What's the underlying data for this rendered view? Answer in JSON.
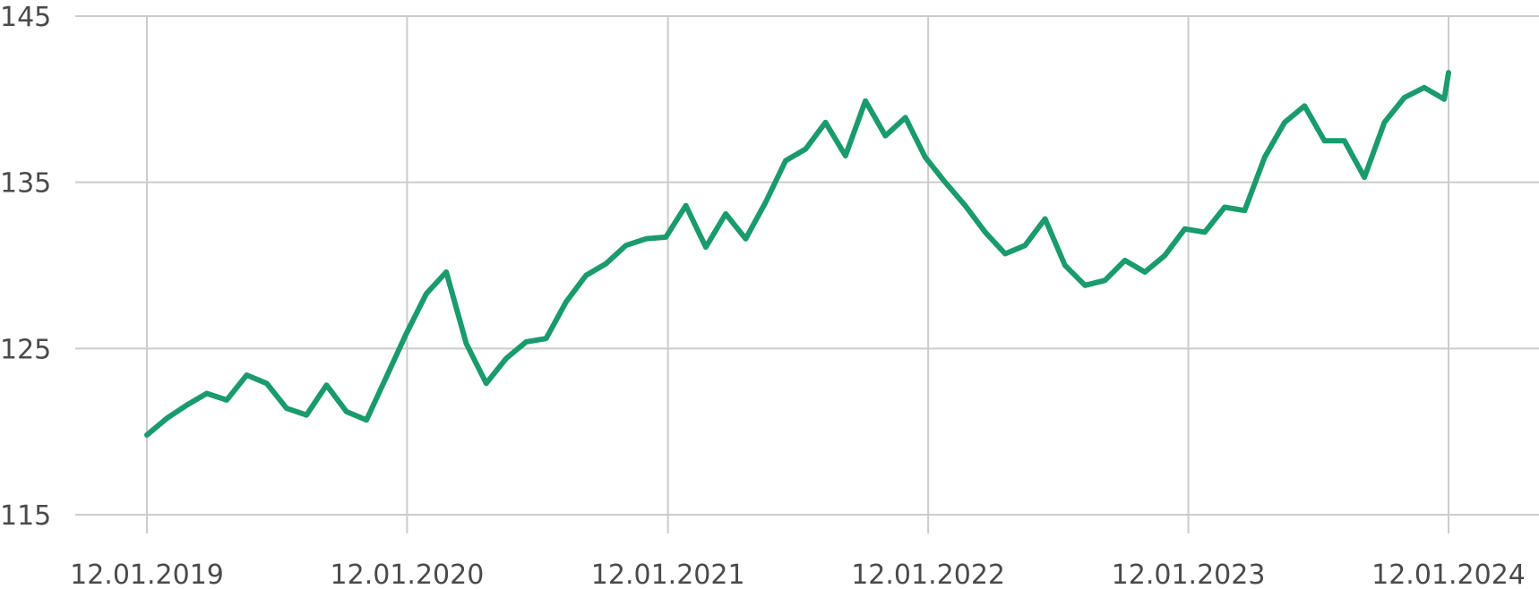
{
  "chart_data": {
    "type": "line",
    "title": "",
    "xlabel": "",
    "ylabel": "",
    "ylim": [
      115,
      145
    ],
    "y_ticks": [
      "115",
      "125",
      "135",
      "145"
    ],
    "x_ticks": [
      "12.01.2019",
      "12.01.2020",
      "12.01.2021",
      "12.01.2022",
      "12.01.2023",
      "12.01.2024"
    ],
    "grid": true,
    "legend": "none",
    "colors": {
      "series": "#1a9b6c",
      "grid": "#cccccc",
      "text": "#4a4a4a"
    },
    "series": [
      {
        "x": [
          "2019-01-12",
          "2019-02-09",
          "2019-03-09",
          "2019-04-06",
          "2019-05-04",
          "2019-06-01",
          "2019-06-29",
          "2019-07-27",
          "2019-08-24",
          "2019-09-21",
          "2019-10-19",
          "2019-11-16",
          "2019-12-14",
          "2020-01-11",
          "2020-02-08",
          "2020-03-07",
          "2020-04-04",
          "2020-05-02",
          "2020-05-30",
          "2020-06-27",
          "2020-07-25",
          "2020-08-22",
          "2020-09-19",
          "2020-10-17",
          "2020-11-14",
          "2020-12-12",
          "2021-01-09",
          "2021-02-06",
          "2021-03-06",
          "2021-04-03",
          "2021-05-01",
          "2021-05-29",
          "2021-06-26",
          "2021-07-24",
          "2021-08-21",
          "2021-09-18",
          "2021-10-16",
          "2021-11-13",
          "2021-12-11",
          "2022-01-08",
          "2022-02-05",
          "2022-03-05",
          "2022-04-02",
          "2022-04-30",
          "2022-05-28",
          "2022-06-25",
          "2022-07-23",
          "2022-08-20",
          "2022-09-17",
          "2022-10-15",
          "2022-11-12",
          "2022-12-10",
          "2023-01-07",
          "2023-02-04",
          "2023-03-04",
          "2023-04-01",
          "2023-04-29",
          "2023-05-27",
          "2023-06-24",
          "2023-07-22",
          "2023-08-19",
          "2023-09-16",
          "2023-10-14",
          "2023-11-11",
          "2023-12-09",
          "2024-01-06",
          "2024-01-12"
        ],
        "values": [
          119.8,
          120.8,
          121.6,
          122.3,
          121.9,
          123.4,
          122.9,
          121.4,
          121.0,
          122.8,
          121.2,
          120.7,
          123.3,
          125.9,
          128.3,
          129.6,
          125.3,
          122.9,
          124.4,
          125.4,
          125.6,
          127.8,
          129.4,
          130.1,
          131.2,
          131.6,
          131.7,
          133.6,
          131.1,
          133.1,
          131.6,
          133.8,
          136.3,
          137.0,
          138.6,
          136.6,
          139.9,
          137.8,
          138.9,
          136.5,
          135.0,
          133.6,
          132.0,
          130.7,
          131.2,
          132.8,
          130.0,
          128.8,
          129.1,
          130.3,
          129.6,
          130.6,
          132.2,
          132.0,
          133.5,
          133.3,
          136.5,
          138.6,
          139.6,
          137.5,
          137.5,
          135.3,
          138.6,
          140.1,
          140.7,
          140.0,
          141.6
        ]
      }
    ]
  }
}
